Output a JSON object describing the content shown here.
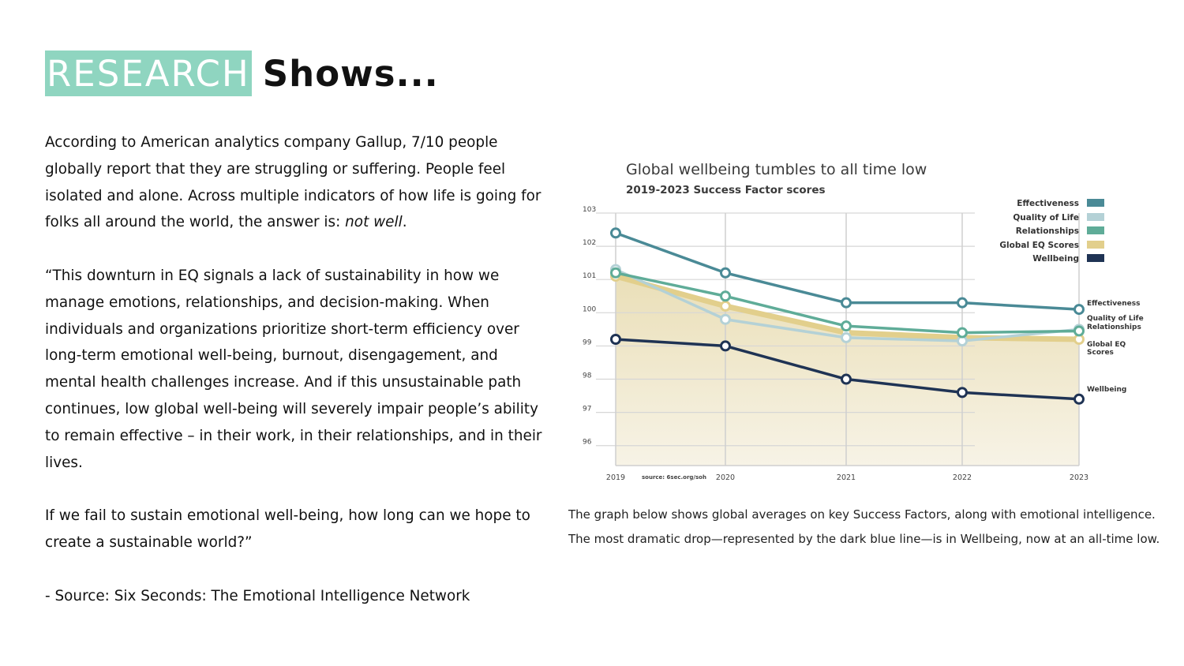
{
  "heading": {
    "highlight": "RESEARCH",
    "rest": "Shows..."
  },
  "body": {
    "p1_start": "According to American analytics company Gallup, 7/10 people globally report that they are struggling or suffering. People feel isolated and alone. Across multiple indicators of how life is going for folks all around the world, the answer is: ",
    "p1_em": "not well",
    "p1_end": ".",
    "p2": "“This downturn in EQ signals a lack of sustainability in how we manage emotions, relationships, and decision-making. When individuals and organizations prioritize short-term efficiency over long-term emotional well-being, burnout, disengagement, and mental health challenges increase. And if this unsustainable path continues, low global well-being will severely impair people’s ability to remain effective – in their work, in their relationships, and in their lives.",
    "p3": "If we fail to sustain emotional well-being, how long can we hope to create a sustainable world?”",
    "source": "- Source: Six Seconds: The Emotional Intelligence Network"
  },
  "caption": "The graph below shows global averages on key Success Factors, along with emotional intelligence. The most dramatic drop—represented by the dark blue line—is in Wellbeing, now at an all-time low.",
  "chart_data": {
    "type": "line",
    "title": "Global wellbeing tumbles to all time low",
    "subtitle": "2019-2023 Success Factor scores",
    "source_note": "source: 6sec.org/soh",
    "x": [
      "2019",
      "2020",
      "2021",
      "2022",
      "2023"
    ],
    "ylim": [
      95.4,
      103
    ],
    "yticks": [
      103,
      102,
      101,
      100,
      99,
      98,
      97,
      96
    ],
    "series": [
      {
        "name": "Effectiveness",
        "color": "#4a8a96",
        "values": [
          102.4,
          101.2,
          100.3,
          100.3,
          100.1
        ],
        "end_label": "Effectiveness"
      },
      {
        "name": "Quality of Life",
        "color": "#b4d1d6",
        "values": [
          101.3,
          99.8,
          99.25,
          99.15,
          99.5
        ],
        "end_label": "Quality of Life"
      },
      {
        "name": "Relationships",
        "color": "#5fac98",
        "values": [
          101.2,
          100.5,
          99.6,
          99.4,
          99.45
        ],
        "end_label": "Relationships"
      },
      {
        "name": "Global EQ Scores",
        "color": "#e2cf8c",
        "values": [
          101.1,
          100.2,
          99.4,
          99.25,
          99.2
        ],
        "end_label": "Global EQ Scores"
      },
      {
        "name": "Wellbeing",
        "color": "#1f3354",
        "values": [
          99.2,
          99.0,
          98.0,
          97.6,
          97.4
        ],
        "end_label": "Wellbeing"
      }
    ]
  }
}
